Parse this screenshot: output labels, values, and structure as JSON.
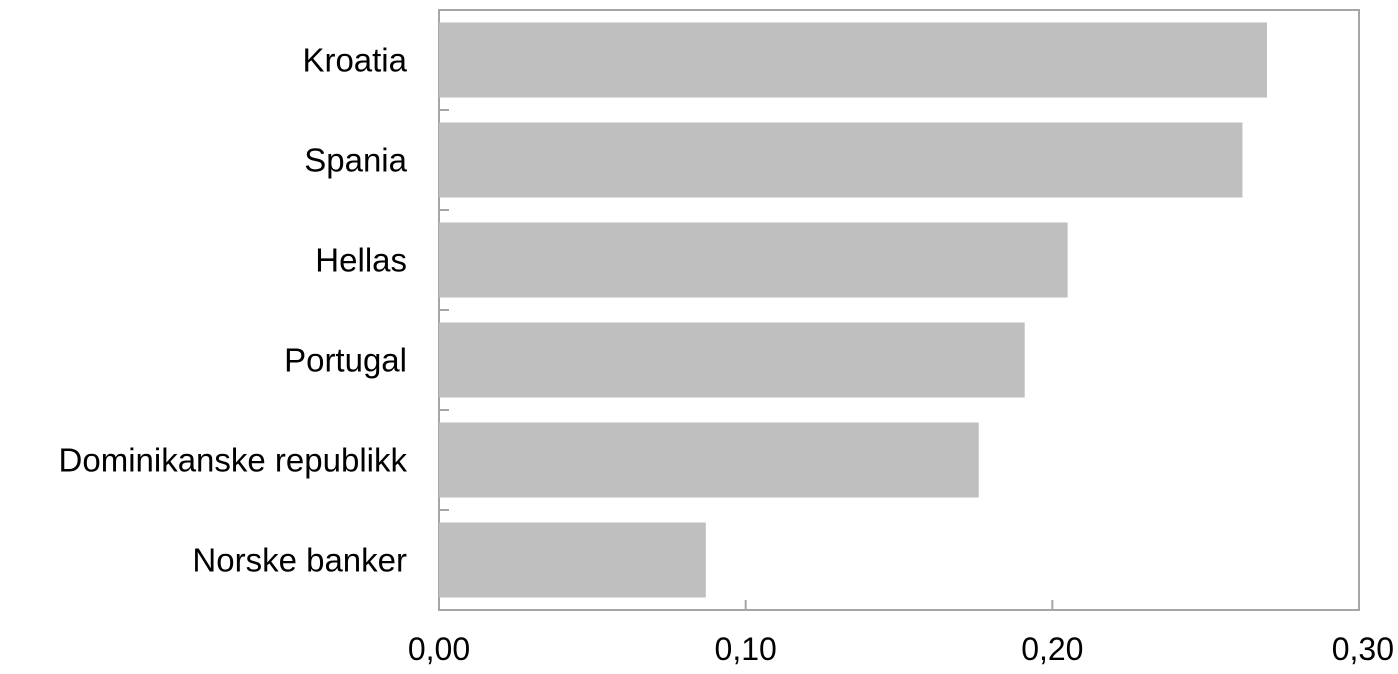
{
  "chart_data": {
    "type": "bar",
    "orientation": "horizontal",
    "title": "",
    "xlabel": "",
    "ylabel": "",
    "categories": [
      "Kroatia",
      "Spania",
      "Hellas",
      "Portugal",
      "Dominikanske republikk",
      "Norske banker"
    ],
    "values": [
      0.27,
      0.262,
      0.205,
      0.191,
      0.176,
      0.087
    ],
    "xlim": [
      0,
      0.3
    ],
    "xticks": [
      "0,00",
      "0,10",
      "0,20",
      "0,30"
    ],
    "tick_values": [
      0,
      0.1,
      0.2,
      0.3
    ],
    "grid": false,
    "bar_color": "#bfbfbf",
    "axis_color": "#a6a6a6"
  }
}
